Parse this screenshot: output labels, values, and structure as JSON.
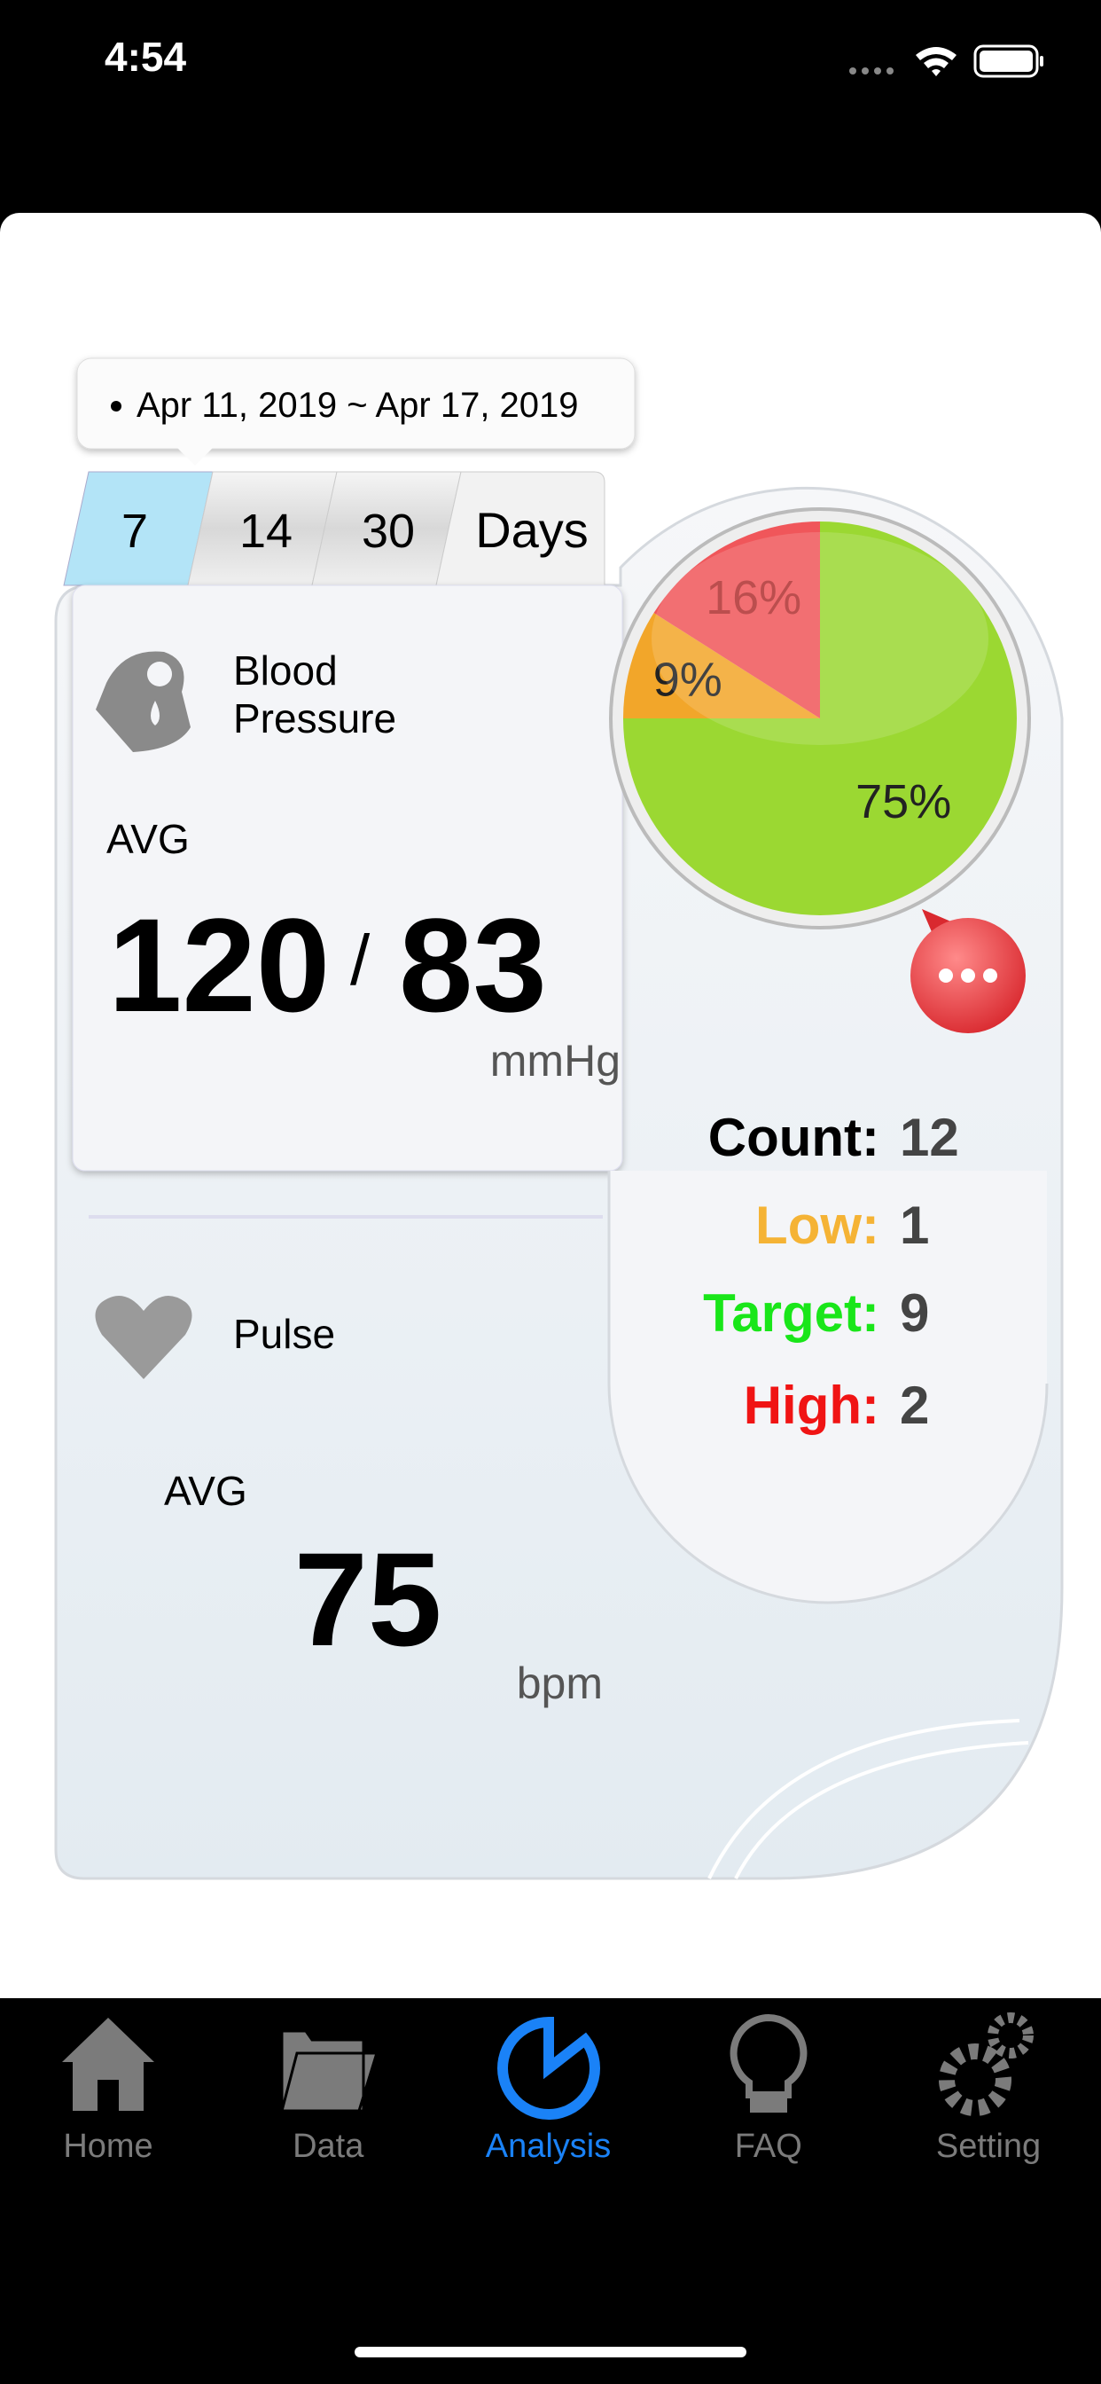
{
  "status_bar": {
    "time": "4:54"
  },
  "date_range": "Apr 11, 2019 ~ Apr 17, 2019",
  "day_tabs": {
    "options": [
      "7",
      "14",
      "30"
    ],
    "unit": "Days"
  },
  "blood_pressure": {
    "title_lines": [
      "Blood",
      "Pressure"
    ],
    "avg_label": "AVG",
    "systolic": 120,
    "separator": "/",
    "diastolic": 83,
    "unit": "mmHg"
  },
  "pie": {
    "values": [
      75,
      9,
      16
    ],
    "value_labels": [
      "75%",
      "9%",
      "16%"
    ],
    "colors": [
      "#9bd832",
      "#f2a62a",
      "#f0565a"
    ]
  },
  "stats": [
    {
      "label": "Count:",
      "value": 12,
      "color": "#000000"
    },
    {
      "label": "Low:",
      "value": 1,
      "color": "#f5b335"
    },
    {
      "label": "Target:",
      "value": 9,
      "color": "#19e619"
    },
    {
      "label": "High:",
      "value": 2,
      "color": "#f01414"
    }
  ],
  "pulse": {
    "title": "Pulse",
    "avg_label": "AVG",
    "value": 75,
    "unit": "bpm"
  },
  "tab_bar": {
    "items": [
      "Home",
      "Data",
      "Analysis",
      "FAQ",
      "Setting"
    ],
    "active_color": "#1a82f7"
  }
}
